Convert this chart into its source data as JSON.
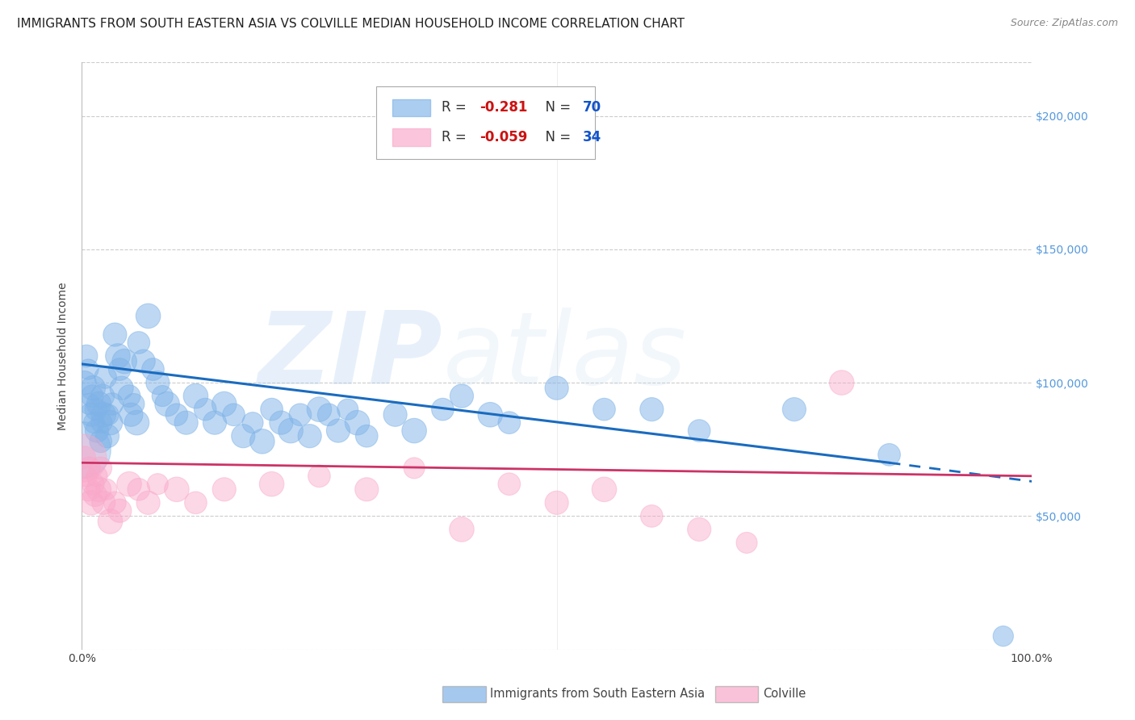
{
  "title": "IMMIGRANTS FROM SOUTH EASTERN ASIA VS COLVILLE MEDIAN HOUSEHOLD INCOME CORRELATION CHART",
  "source": "Source: ZipAtlas.com",
  "ylabel": "Median Household Income",
  "background_color": "#ffffff",
  "watermark_zip": "ZIP",
  "watermark_atlas": "atlas",
  "legend_label1": "Immigrants from South Eastern Asia",
  "legend_label2": "Colville",
  "blue_color": "#7fb3e8",
  "pink_color": "#f9a8c9",
  "blue_line_color": "#1a6bbf",
  "pink_line_color": "#e8547a",
  "pink_line_color2": "#cc3366",
  "ytick_color": "#5599dd",
  "ylim": [
    0,
    220000
  ],
  "xlim": [
    0,
    100
  ],
  "yticks": [
    0,
    50000,
    100000,
    150000,
    200000
  ],
  "ytick_labels": [
    "",
    "$50,000",
    "$100,000",
    "$150,000",
    "$200,000"
  ],
  "blue_x": [
    0.3,
    0.5,
    0.7,
    0.8,
    1.0,
    1.1,
    1.2,
    1.3,
    1.5,
    1.6,
    1.8,
    2.0,
    2.1,
    2.2,
    2.3,
    2.5,
    2.7,
    2.8,
    3.0,
    3.2,
    3.5,
    3.8,
    4.0,
    4.2,
    4.5,
    5.0,
    5.2,
    5.5,
    5.8,
    6.0,
    6.5,
    7.0,
    7.5,
    8.0,
    8.5,
    9.0,
    10.0,
    11.0,
    12.0,
    13.0,
    14.0,
    15.0,
    16.0,
    17.0,
    18.0,
    19.0,
    20.0,
    21.0,
    22.0,
    23.0,
    24.0,
    25.0,
    26.0,
    27.0,
    28.0,
    29.0,
    30.0,
    33.0,
    35.0,
    38.0,
    40.0,
    43.0,
    45.0,
    50.0,
    55.0,
    60.0,
    65.0,
    75.0,
    85.0,
    97.0
  ],
  "blue_y": [
    100000,
    110000,
    105000,
    92000,
    88000,
    95000,
    98000,
    85000,
    90000,
    82000,
    92000,
    78000,
    85000,
    95000,
    88000,
    102000,
    80000,
    88000,
    85000,
    92000,
    118000,
    110000,
    105000,
    98000,
    108000,
    95000,
    88000,
    92000,
    85000,
    115000,
    108000,
    125000,
    105000,
    100000,
    95000,
    92000,
    88000,
    85000,
    95000,
    90000,
    85000,
    92000,
    88000,
    80000,
    85000,
    78000,
    90000,
    85000,
    82000,
    88000,
    80000,
    90000,
    88000,
    82000,
    90000,
    85000,
    80000,
    88000,
    82000,
    90000,
    95000,
    88000,
    85000,
    98000,
    90000,
    90000,
    82000,
    90000,
    73000,
    5000
  ],
  "blue_sizes": [
    20,
    18,
    15,
    16,
    20,
    18,
    22,
    16,
    18,
    20,
    22,
    18,
    16,
    20,
    22,
    18,
    20,
    16,
    22,
    18,
    20,
    22,
    18,
    20,
    22,
    18,
    20,
    16,
    22,
    18,
    20,
    22,
    18,
    20,
    16,
    22,
    18,
    20,
    22,
    18,
    20,
    22,
    18,
    20,
    16,
    22,
    18,
    20,
    22,
    18,
    20,
    22,
    18,
    20,
    16,
    22,
    18,
    20,
    22,
    18,
    20,
    22,
    18,
    20,
    18,
    20,
    18,
    20,
    18,
    15
  ],
  "blue_large_x": [
    0.1
  ],
  "blue_large_y": [
    75000
  ],
  "blue_large_size": [
    2500
  ],
  "pink_x": [
    0.3,
    0.5,
    0.7,
    0.8,
    1.0,
    1.2,
    1.4,
    1.6,
    1.8,
    2.0,
    2.3,
    2.6,
    3.0,
    3.5,
    4.0,
    5.0,
    6.0,
    7.0,
    8.0,
    10.0,
    12.0,
    15.0,
    20.0,
    25.0,
    30.0,
    35.0,
    40.0,
    45.0,
    50.0,
    55.0,
    60.0,
    65.0,
    70.0,
    80.0
  ],
  "pink_y": [
    72000,
    65000,
    60000,
    68000,
    55000,
    62000,
    58000,
    65000,
    60000,
    68000,
    55000,
    60000,
    48000,
    55000,
    52000,
    62000,
    60000,
    55000,
    62000,
    60000,
    55000,
    60000,
    62000,
    65000,
    60000,
    68000,
    45000,
    62000,
    55000,
    60000,
    50000,
    45000,
    40000,
    100000
  ],
  "pink_large_x": [
    0.1
  ],
  "pink_large_y": [
    72000
  ],
  "pink_large_size": [
    1800
  ],
  "pink_sizes": [
    18,
    16,
    20,
    18,
    22,
    18,
    20,
    16,
    22,
    18,
    20,
    16,
    22,
    18,
    20,
    22,
    18,
    20,
    16,
    22,
    18,
    20,
    22,
    18,
    20,
    16,
    22,
    18,
    20,
    22,
    18,
    20,
    16,
    22
  ],
  "blue_trend_x0": 0,
  "blue_trend_y0": 107000,
  "blue_trend_x1": 85,
  "blue_trend_y1": 70000,
  "blue_dash_x0": 85,
  "blue_dash_y0": 70000,
  "blue_dash_x1": 100,
  "blue_dash_y1": 63000,
  "pink_trend_x0": 0,
  "pink_trend_y0": 70000,
  "pink_trend_x1": 100,
  "pink_trend_y1": 65000,
  "title_fontsize": 11,
  "axis_label_fontsize": 10,
  "tick_fontsize": 10
}
